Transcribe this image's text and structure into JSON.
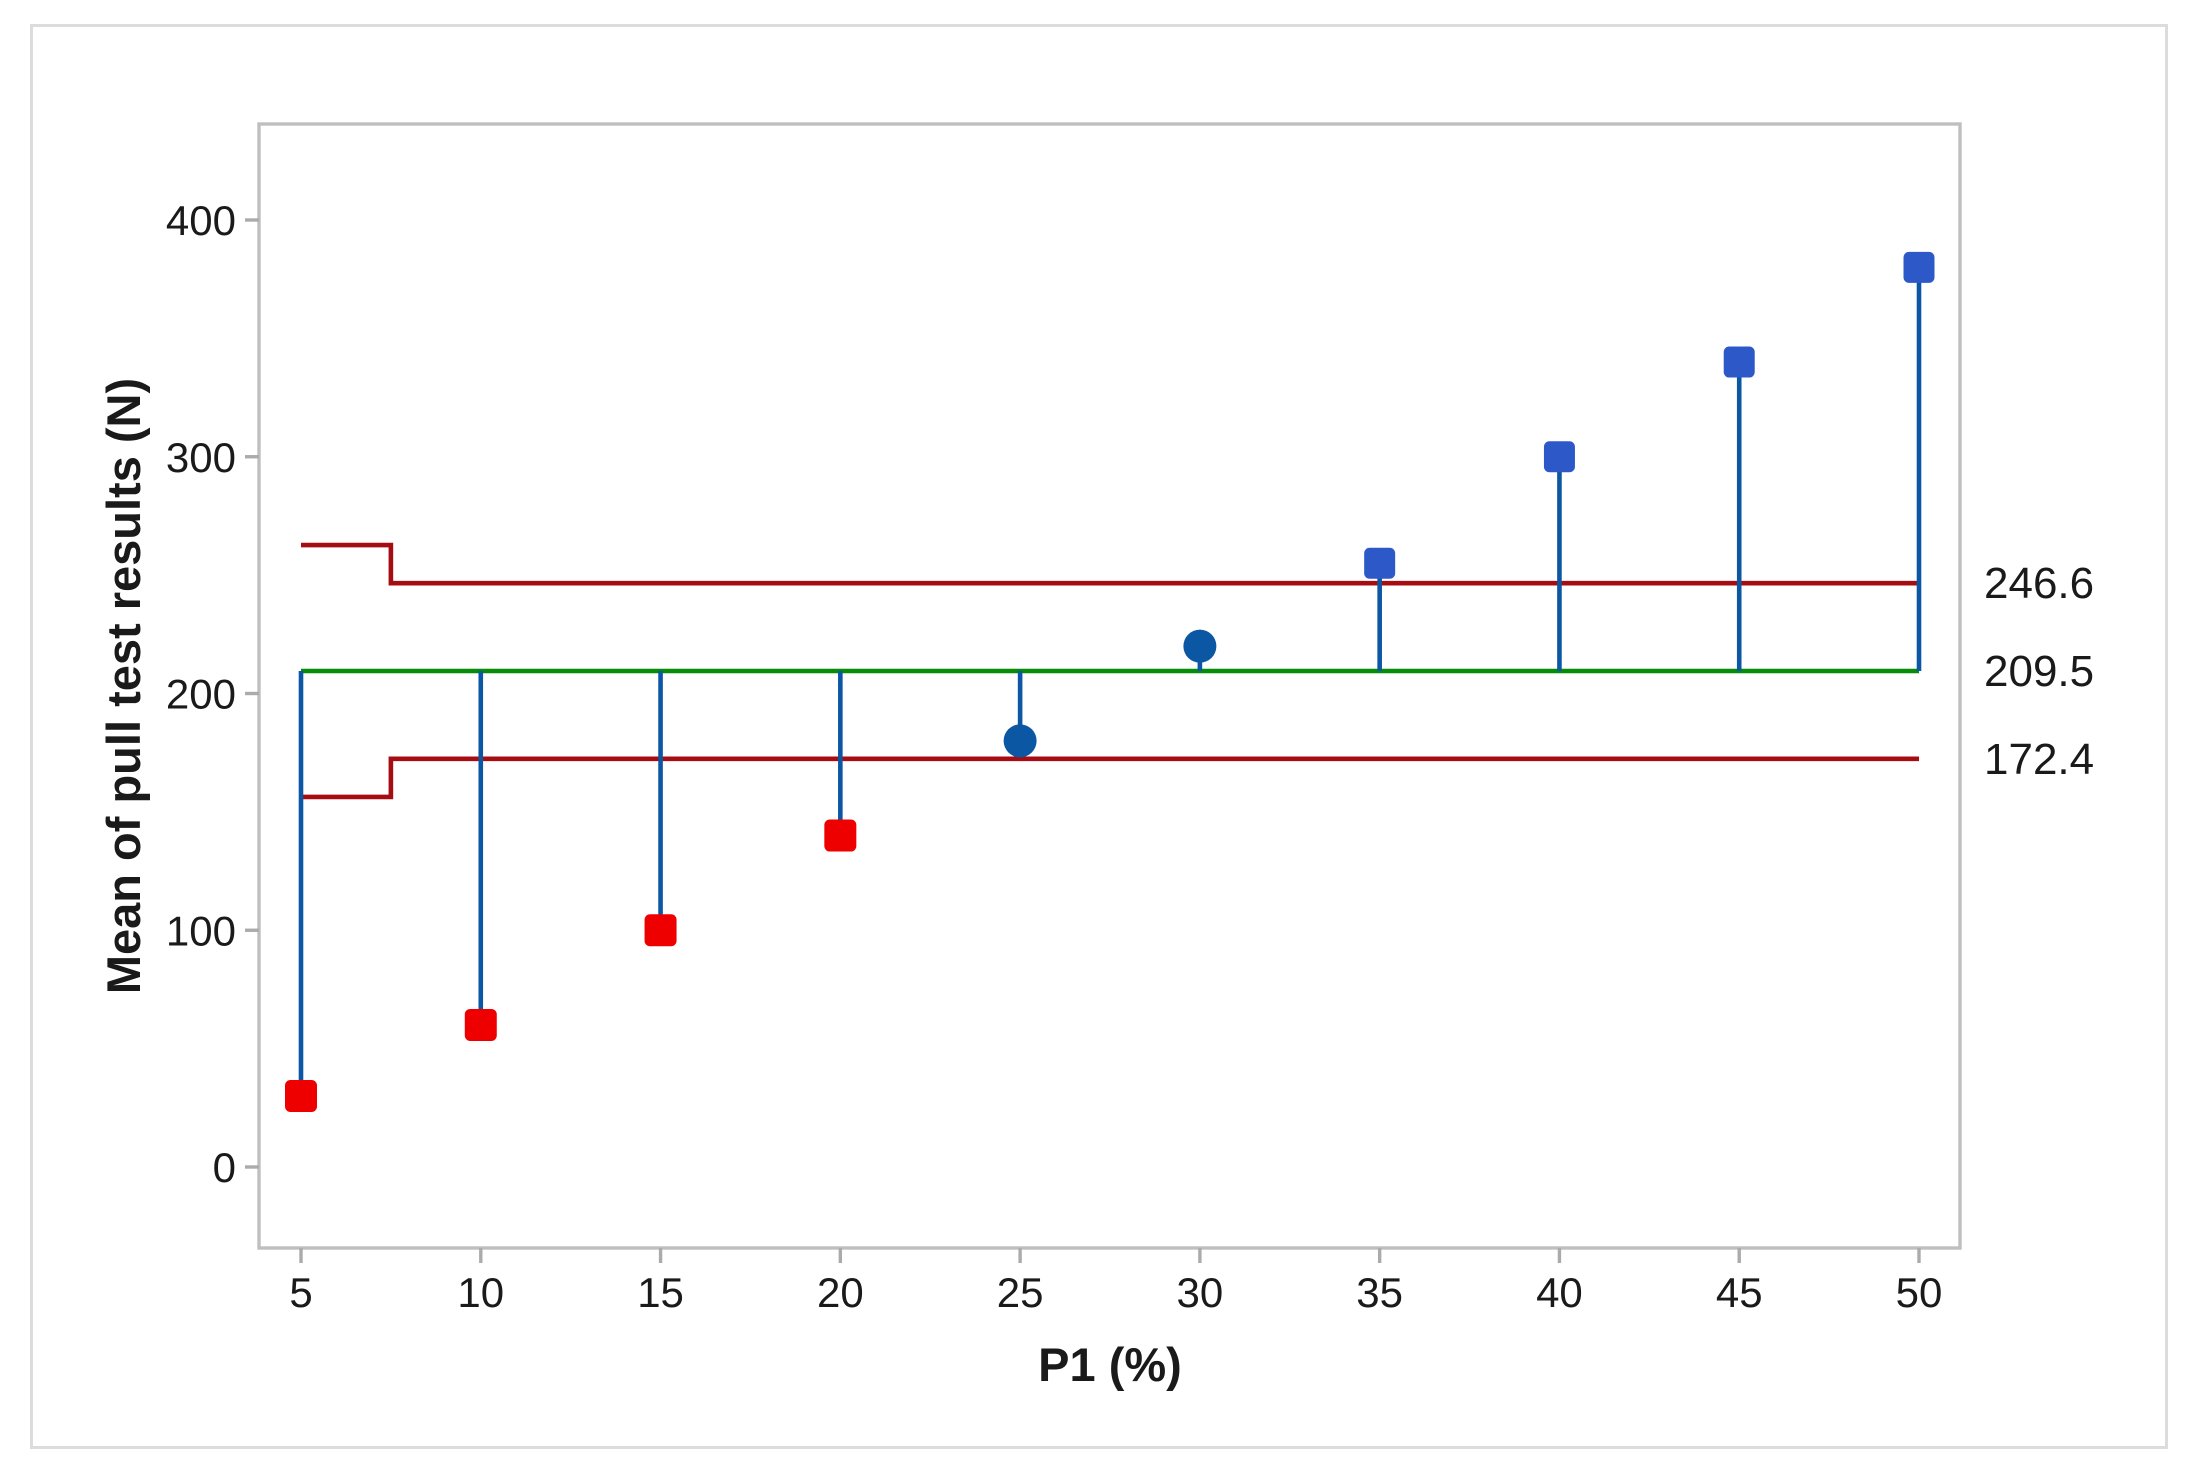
{
  "window": {
    "background": "#FFFFFF",
    "frame_color": "#DCDCDC",
    "plot_border_color": "#BFBFBF",
    "tick_color": "#ABABAB",
    "text_color": "#1A1A1A"
  },
  "chart_data": {
    "type": "scatter",
    "subtype": "analysis-of-means-decision-chart",
    "title": "",
    "xlabel": "P1 (%)",
    "ylabel": "Mean of pull test results (N)",
    "x": [
      5,
      10,
      15,
      20,
      25,
      30,
      35,
      40,
      45,
      50
    ],
    "y": [
      30,
      60,
      100,
      140,
      180,
      220,
      255,
      300,
      340,
      380
    ],
    "point_status": [
      "below",
      "below",
      "below",
      "below",
      "within",
      "within",
      "above",
      "above",
      "above",
      "above"
    ],
    "center_line": {
      "value": 209.5,
      "label": "209.5",
      "color": "#078C07"
    },
    "upper_decision_limit": {
      "value": 246.6,
      "label": "246.6",
      "first_group_value": 262.7,
      "step_x": 7.5
    },
    "lower_decision_limit": {
      "value": 172.4,
      "label": "172.4",
      "first_group_value": 156.3,
      "step_x": 7.5
    },
    "limit_color": "#A60D12",
    "stem_color": "#0B57A4",
    "marker_colors": {
      "below": "#EE0000",
      "within": "#0B57A4",
      "above": "#2D59C8"
    },
    "x_ticks": [
      5,
      10,
      15,
      20,
      25,
      30,
      35,
      40,
      45,
      50
    ],
    "y_ticks": [
      0,
      100,
      200,
      300,
      400
    ],
    "xlim": [
      3.8,
      51.1
    ],
    "ylim": [
      -34,
      440
    ],
    "grid": false,
    "legend": false
  }
}
